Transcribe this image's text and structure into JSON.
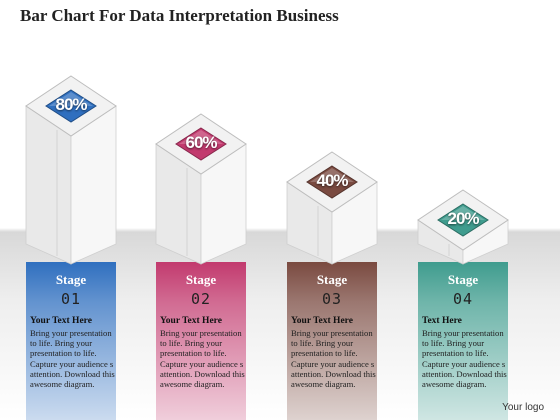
{
  "title": "Bar Chart For Data Interpretation Business",
  "logo_text": "Your logo",
  "chart_data": {
    "type": "bar",
    "title": "Bar Chart For Data Interpretation Business",
    "categories": [
      "Stage 01",
      "Stage 02",
      "Stage 03",
      "Stage 04"
    ],
    "values": [
      80,
      60,
      40,
      20
    ],
    "value_labels": [
      "80%",
      "60%",
      "40%",
      "20%"
    ],
    "ylim": [
      0,
      100
    ],
    "grid": false,
    "colors": [
      "#2f6fbf",
      "#c23a6e",
      "#7a4a40",
      "#3f9c8e"
    ]
  },
  "stages": [
    {
      "label": "Stage",
      "number": "01",
      "heading": "Your Text Here",
      "body": "Bring your presentation to life. Bring your presentation to life. Capture your audience s attention. Download this awesome diagram."
    },
    {
      "label": "Stage",
      "number": "02",
      "heading": "Your Text Here",
      "body": "Bring your presentation to life. Bring your presentation to life. Capture your audience s attention. Download this awesome diagram."
    },
    {
      "label": "Stage",
      "number": "03",
      "heading": "Your Text Here",
      "body": "Bring your presentation to life. Bring your presentation to life. Capture your audience s attention. Download this awesome diagram."
    },
    {
      "label": "Stage",
      "number": "04",
      "heading": "Text Here",
      "body": "Bring your presentation to life. Bring your presentation to life. Capture your audience s attention. Download this awesome diagram."
    }
  ]
}
